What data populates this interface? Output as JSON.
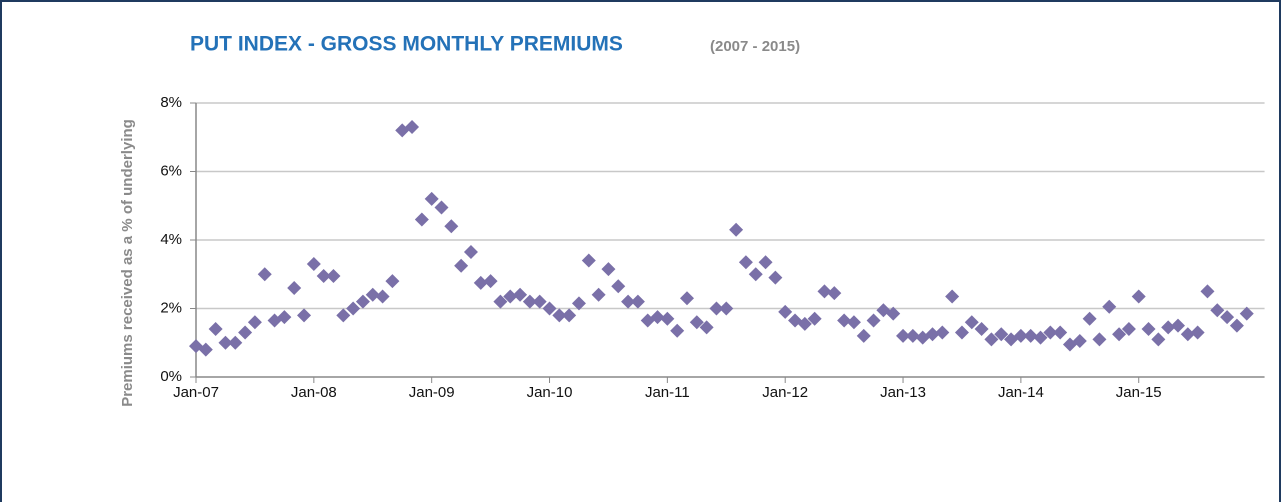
{
  "chart_data": {
    "type": "scatter",
    "title": "PUT INDEX - GROSS MONTHLY PREMIUMS",
    "subtitle": "(2007 - 2015)",
    "y_label": "Premiums received as a % of underlying",
    "categories": [
      "Jan-07",
      null,
      null,
      null,
      null,
      null,
      null,
      null,
      null,
      null,
      null,
      null,
      "Jan-08",
      null,
      null,
      null,
      null,
      null,
      null,
      null,
      null,
      null,
      null,
      null,
      "Jan-09",
      null,
      null,
      null,
      null,
      null,
      null,
      null,
      null,
      null,
      null,
      null,
      "Jan-10",
      null,
      null,
      null,
      null,
      null,
      null,
      null,
      null,
      null,
      null,
      null,
      "Jan-11",
      null,
      null,
      null,
      null,
      null,
      null,
      null,
      null,
      null,
      null,
      null,
      "Jan-12",
      null,
      null,
      null,
      null,
      null,
      null,
      null,
      null,
      null,
      null,
      null,
      "Jan-13",
      null,
      null,
      null,
      null,
      null,
      null,
      null,
      null,
      null,
      null,
      null,
      "Jan-14",
      null,
      null,
      null,
      null,
      null,
      null,
      null,
      null,
      null,
      null,
      null,
      "Jan-15",
      null,
      null,
      null,
      null,
      null,
      null,
      null,
      null,
      null,
      null,
      null
    ],
    "values": [
      0.9,
      0.8,
      1.4,
      1.0,
      1.0,
      1.3,
      1.6,
      3.0,
      1.65,
      1.75,
      2.6,
      1.8,
      3.3,
      2.95,
      2.95,
      1.8,
      2.0,
      2.2,
      2.4,
      2.35,
      2.8,
      7.2,
      7.3,
      4.6,
      5.2,
      4.95,
      4.4,
      3.25,
      3.65,
      2.75,
      2.8,
      2.2,
      2.35,
      2.4,
      2.2,
      2.2,
      2.0,
      1.8,
      1.8,
      2.15,
      3.4,
      2.4,
      3.15,
      2.65,
      2.2,
      2.2,
      1.65,
      1.75,
      1.7,
      1.35,
      2.3,
      1.6,
      1.45,
      2.0,
      2.0,
      4.3,
      3.35,
      3.0,
      3.35,
      2.9,
      1.9,
      1.65,
      1.55,
      1.7,
      2.5,
      2.45,
      1.65,
      1.6,
      1.2,
      1.65,
      1.95,
      1.85,
      1.2,
      1.2,
      1.15,
      1.25,
      1.3,
      2.35,
      1.3,
      1.6,
      1.4,
      1.1,
      1.25,
      1.1,
      1.2,
      1.2,
      1.15,
      1.3,
      1.3,
      0.95,
      1.05,
      1.7,
      1.1,
      2.05,
      1.25,
      1.4,
      2.35,
      1.4,
      1.1,
      1.45,
      1.5,
      1.25,
      1.3,
      2.5,
      1.95,
      1.75,
      1.5,
      1.85
    ],
    "color": "#7a70a8",
    "ylim": [
      0,
      8
    ],
    "yticks": [
      {
        "value": 0,
        "label": "0%"
      },
      {
        "value": 2,
        "label": "2%"
      },
      {
        "value": 4,
        "label": "4%"
      },
      {
        "value": 6,
        "label": "6%"
      },
      {
        "value": 8,
        "label": "8%"
      }
    ],
    "grid": true
  }
}
